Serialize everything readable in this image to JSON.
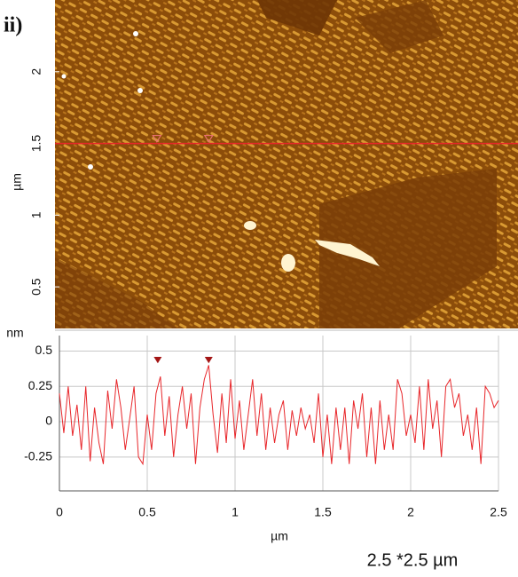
{
  "panel_label": "ii)",
  "caption": "2.5 *2.5 µm",
  "chart_data": [
    {
      "type": "image",
      "ylabel": "µm",
      "xlim": [
        0,
        2.5
      ],
      "ylim": [
        0.21,
        2.5
      ],
      "yticks": [
        0.5,
        1,
        1.5,
        2
      ],
      "profile_y": 1.5,
      "profile_color": "#e8262a",
      "markers_x": [
        0.55,
        0.83
      ],
      "marker_color": "#e87070"
    },
    {
      "type": "line",
      "ylabel": "nm",
      "xlabel": "µm",
      "color": "#e8262a",
      "grid": true,
      "xlim": [
        0,
        2.5
      ],
      "ylim": [
        -0.49,
        0.61
      ],
      "xticks": [
        0,
        0.5,
        1,
        1.5,
        2,
        2.5
      ],
      "yticks": [
        0.5,
        0.25,
        0,
        -0.25
      ],
      "markers_x": [
        0.56,
        0.85
      ],
      "marker_color": "#a31515",
      "x": [
        0,
        0.025,
        0.05,
        0.075,
        0.1,
        0.125,
        0.15,
        0.175,
        0.2,
        0.225,
        0.25,
        0.275,
        0.3,
        0.325,
        0.35,
        0.375,
        0.4,
        0.425,
        0.45,
        0.475,
        0.5,
        0.525,
        0.55,
        0.575,
        0.6,
        0.625,
        0.65,
        0.675,
        0.7,
        0.725,
        0.75,
        0.775,
        0.8,
        0.825,
        0.85,
        0.875,
        0.9,
        0.925,
        0.95,
        0.975,
        1,
        1.025,
        1.05,
        1.075,
        1.1,
        1.125,
        1.15,
        1.175,
        1.2,
        1.225,
        1.25,
        1.275,
        1.3,
        1.325,
        1.35,
        1.375,
        1.4,
        1.425,
        1.45,
        1.475,
        1.5,
        1.525,
        1.55,
        1.575,
        1.6,
        1.625,
        1.65,
        1.675,
        1.7,
        1.725,
        1.75,
        1.775,
        1.8,
        1.825,
        1.85,
        1.875,
        1.9,
        1.925,
        1.95,
        1.975,
        2,
        2.025,
        2.05,
        2.075,
        2.1,
        2.125,
        2.15,
        2.175,
        2.2,
        2.225,
        2.25,
        2.275,
        2.3,
        2.325,
        2.35,
        2.375,
        2.4,
        2.425,
        2.45,
        2.475,
        2.5
      ],
      "values": [
        0.2,
        -0.08,
        0.25,
        -0.1,
        0.12,
        -0.2,
        0.25,
        -0.28,
        0.1,
        -0.15,
        -0.3,
        0.22,
        -0.05,
        0.3,
        0.1,
        -0.2,
        0.02,
        0.25,
        -0.25,
        -0.3,
        0.05,
        -0.2,
        0.2,
        0.32,
        -0.1,
        0.18,
        -0.25,
        0.05,
        0.25,
        -0.05,
        0.2,
        -0.3,
        0.1,
        0.3,
        0.4,
        0.05,
        -0.22,
        0.2,
        -0.15,
        0.3,
        -0.12,
        0.15,
        -0.2,
        0.05,
        0.3,
        -0.1,
        0.2,
        -0.2,
        0.1,
        -0.15,
        0.05,
        0.15,
        -0.2,
        0.08,
        -0.1,
        0.1,
        -0.05,
        0.05,
        -0.15,
        0.2,
        -0.25,
        0.05,
        -0.3,
        0.1,
        -0.2,
        0.1,
        -0.3,
        0.15,
        -0.05,
        0.2,
        -0.25,
        0.1,
        -0.3,
        0.15,
        -0.2,
        0.05,
        -0.2,
        0.3,
        0.2,
        -0.1,
        0.05,
        -0.15,
        0.25,
        -0.2,
        0.3,
        -0.05,
        0.15,
        -0.25,
        0.25,
        0.3,
        0.1,
        0.2,
        -0.1,
        0.05,
        -0.2,
        0.1,
        -0.3,
        0.25,
        0.2,
        0.1,
        0.15
      ]
    }
  ]
}
